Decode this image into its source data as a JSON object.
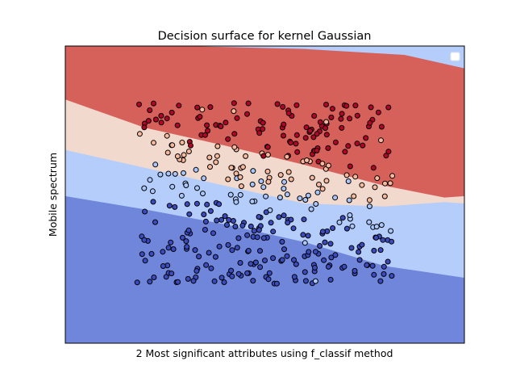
{
  "chart_data": {
    "type": "scatter",
    "title": "Decision surface for kernel Gaussian",
    "xlabel": "2 Most significant attributes using f_classif method",
    "ylabel": "Mobile spectrum",
    "xlim": [
      0,
      1
    ],
    "ylim": [
      0,
      1
    ],
    "grid": false,
    "xticks": false,
    "yticks": false,
    "legend": {
      "location": "top-right",
      "entries": []
    },
    "regions": {
      "description": "filled decision contour, 4 classes",
      "colors": [
        "#6f86db",
        "#b4cdfb",
        "#f1d9cd",
        "#d6605a"
      ],
      "top_region_color": "#b4cdfb",
      "boundaries": [
        {
          "between": [
            0,
            1
          ],
          "x": [
            0,
            0.2,
            0.4,
            0.6,
            0.8,
            1.0
          ],
          "y": [
            0.495,
            0.45,
            0.4,
            0.34,
            0.26,
            0.22
          ]
        },
        {
          "between": [
            1,
            2
          ],
          "x": [
            0,
            0.2,
            0.4,
            0.6,
            0.8,
            0.95,
            1.0
          ],
          "y": [
            0.65,
            0.59,
            0.53,
            0.47,
            0.46,
            0.475,
            0.47
          ]
        },
        {
          "between": [
            2,
            3
          ],
          "x": [
            0,
            0.2,
            0.4,
            0.6,
            0.8,
            0.95,
            1.0
          ],
          "y": [
            0.82,
            0.725,
            0.665,
            0.6,
            0.53,
            0.49,
            0.495
          ]
        },
        {
          "between": [
            3,
            "top"
          ],
          "x": [
            0,
            0.3,
            0.6,
            0.85,
            1.0
          ],
          "y": [
            1.0,
            1.0,
            0.99,
            0.97,
            0.925
          ]
        }
      ]
    },
    "point_colors": [
      "#3b4cc0",
      "#aac7fd",
      "#f7b89c",
      "#b40426"
    ],
    "point_params": {
      "seed": 7,
      "count": 400,
      "x_range": [
        0.18,
        0.82
      ],
      "y_range": [
        0.2,
        0.81
      ],
      "class_boundaries_at_x0": [
        0.52,
        0.62,
        0.72
      ],
      "class_boundary_slope": -0.24
    }
  }
}
